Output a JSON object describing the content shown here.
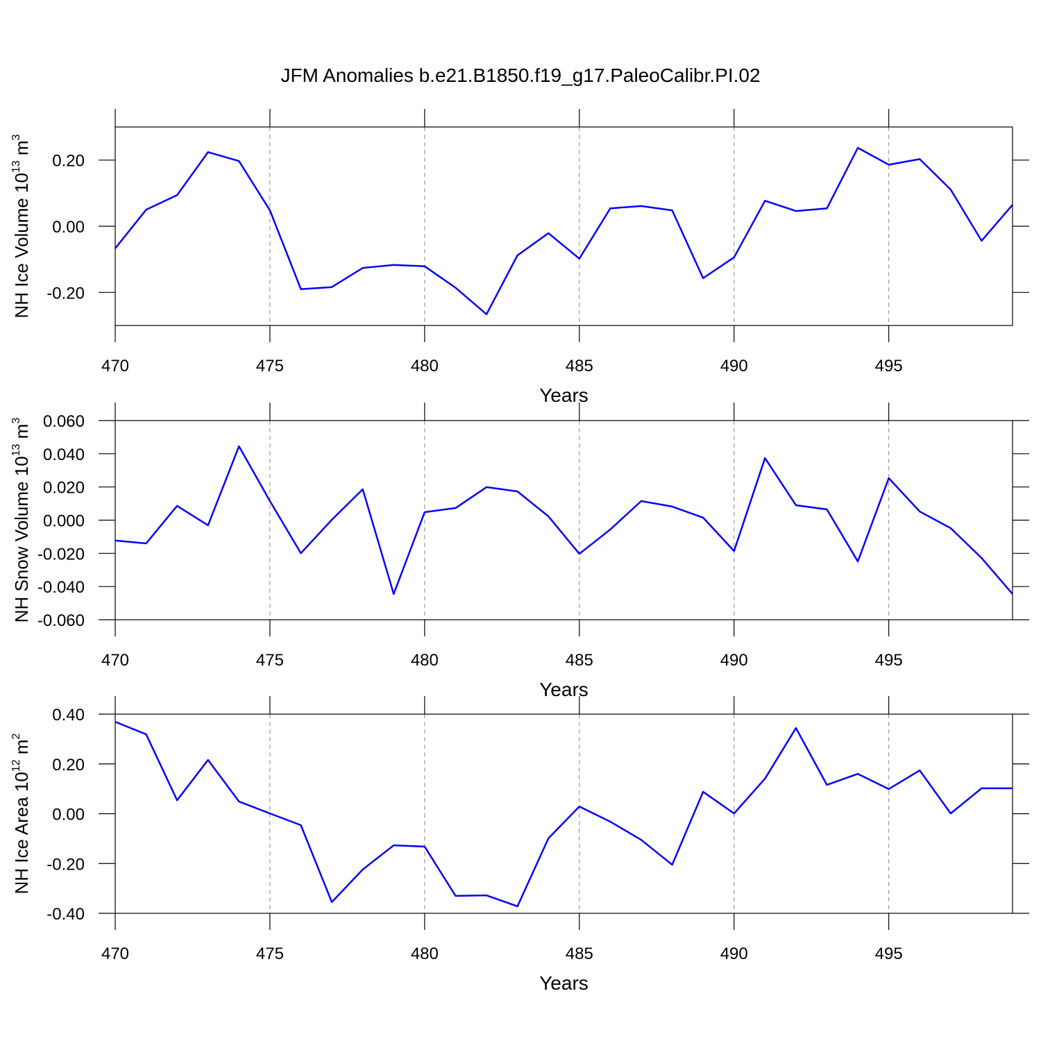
{
  "chart_data": [
    {
      "type": "line",
      "title": "JFM Anomalies b.e21.B1850.f19_g17.PaleoCalibr.PI.02",
      "xlabel": "Years",
      "ylabel": [
        "NH Ice Volume 10",
        "13",
        " m",
        "3"
      ],
      "x": [
        470,
        471,
        472,
        473,
        474,
        475,
        476,
        477,
        478,
        479,
        480,
        481,
        482,
        483,
        484,
        485,
        486,
        487,
        488,
        489,
        490,
        491,
        492,
        493,
        494,
        495,
        496,
        497,
        498,
        499
      ],
      "values": [
        -0.067,
        0.05,
        0.094,
        0.224,
        0.197,
        0.048,
        -0.19,
        -0.184,
        -0.126,
        -0.117,
        -0.121,
        -0.186,
        -0.266,
        -0.088,
        -0.021,
        -0.098,
        0.054,
        0.061,
        0.048,
        -0.157,
        -0.094,
        0.077,
        0.046,
        0.054,
        0.237,
        0.186,
        0.203,
        0.111,
        -0.044,
        0.065
      ],
      "color": "#0000ff",
      "xlim": [
        470,
        499
      ],
      "ylim": [
        -0.3,
        0.3
      ],
      "xticks": [
        470,
        475,
        480,
        485,
        490,
        495
      ],
      "yticks": [
        {
          "value": -0.2,
          "label": "-0.20"
        },
        {
          "value": 0,
          "label": "0.00"
        },
        {
          "value": 0.2,
          "label": "0.20"
        }
      ],
      "grid_x": true
    },
    {
      "type": "line",
      "xlabel": "Years",
      "ylabel": [
        "NH Snow Volume 10",
        "13",
        " m",
        "3"
      ],
      "x": [
        470,
        471,
        472,
        473,
        474,
        475,
        476,
        477,
        478,
        479,
        480,
        481,
        482,
        483,
        484,
        485,
        486,
        487,
        488,
        489,
        490,
        491,
        492,
        493,
        494,
        495,
        496,
        497,
        498,
        499
      ],
      "values": [
        -0.0123,
        -0.014,
        0.0086,
        -0.0031,
        0.0445,
        0.0115,
        -0.0199,
        0.0002,
        0.0186,
        -0.0445,
        0.0048,
        0.0073,
        0.0199,
        0.0173,
        0.0023,
        -0.0203,
        -0.0056,
        0.0115,
        0.0082,
        0.0015,
        -0.0186,
        0.0374,
        0.009,
        0.0065,
        -0.0249,
        0.0253,
        0.0052,
        -0.0048,
        -0.0228,
        -0.0445
      ],
      "color": "#0000ff",
      "xlim": [
        470,
        499
      ],
      "ylim": [
        -0.06,
        0.06
      ],
      "xticks": [
        470,
        475,
        480,
        485,
        490,
        495
      ],
      "yticks": [
        {
          "value": -0.06,
          "label": "-0.060"
        },
        {
          "value": -0.04,
          "label": "-0.040"
        },
        {
          "value": -0.02,
          "label": "-0.020"
        },
        {
          "value": 0,
          "label": "0.000"
        },
        {
          "value": 0.02,
          "label": "0.020"
        },
        {
          "value": 0.04,
          "label": "0.040"
        },
        {
          "value": 0.06,
          "label": "0.060"
        }
      ],
      "grid_x": true
    },
    {
      "type": "line",
      "xlabel": "Years",
      "ylabel": [
        "NH Ice Area 10",
        "12",
        " m",
        "2"
      ],
      "x": [
        470,
        471,
        472,
        473,
        474,
        475,
        476,
        477,
        478,
        479,
        480,
        481,
        482,
        483,
        484,
        485,
        486,
        487,
        488,
        489,
        490,
        491,
        492,
        493,
        494,
        495,
        496,
        497,
        498,
        499
      ],
      "values": [
        0.369,
        0.319,
        0.054,
        0.216,
        0.049,
        0.001,
        -0.046,
        -0.355,
        -0.224,
        -0.127,
        -0.132,
        -0.33,
        -0.328,
        -0.372,
        -0.099,
        0.029,
        -0.032,
        -0.105,
        -0.205,
        0.088,
        0.001,
        0.141,
        0.344,
        0.116,
        0.16,
        0.099,
        0.174,
        0.001,
        0.102,
        0.102
      ],
      "color": "#0000ff",
      "xlim": [
        470,
        499
      ],
      "ylim": [
        -0.4,
        0.4
      ],
      "xticks": [
        470,
        475,
        480,
        485,
        490,
        495
      ],
      "yticks": [
        {
          "value": -0.4,
          "label": "-0.40"
        },
        {
          "value": -0.2,
          "label": "-0.20"
        },
        {
          "value": 0,
          "label": "0.00"
        },
        {
          "value": 0.2,
          "label": "0.20"
        },
        {
          "value": 0.4,
          "label": "0.40"
        }
      ],
      "grid_x": true
    }
  ]
}
